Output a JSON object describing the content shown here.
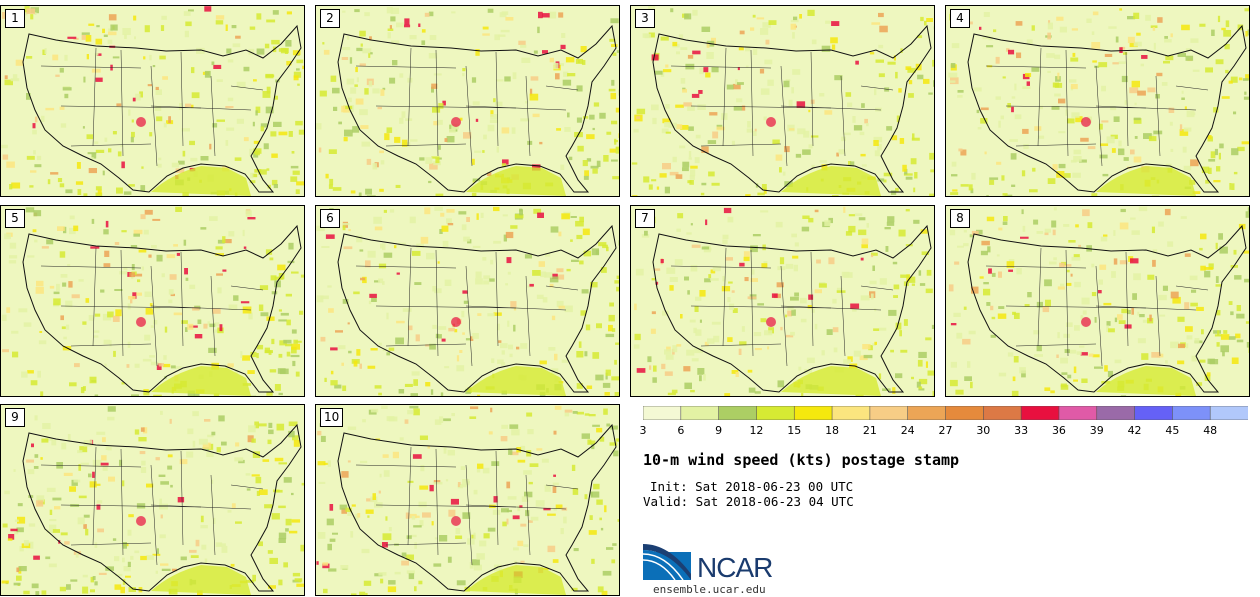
{
  "members": [
    "1",
    "2",
    "3",
    "4",
    "5",
    "6",
    "7",
    "8",
    "9",
    "10"
  ],
  "colorbar": {
    "ticks": [
      "3",
      "6",
      "9",
      "12",
      "15",
      "18",
      "21",
      "24",
      "27",
      "30",
      "33",
      "36",
      "39",
      "42",
      "45",
      "48"
    ],
    "colors": [
      "#f4f9d4",
      "#e3f2a4",
      "#acce64",
      "#d6ea33",
      "#f5e80e",
      "#fbe57f",
      "#f7cd86",
      "#eca556",
      "#e58a3c",
      "#dc7945",
      "#e8103f",
      "#e05aa7",
      "#9a6aa8",
      "#6561f6",
      "#7d91f9",
      "#b1c8fb"
    ]
  },
  "title": "10-m wind speed (kts) postage stamp",
  "init": "Init: Sat 2018-06-23 00 UTC",
  "valid": "Valid: Sat 2018-06-23 04 UTC",
  "logo": {
    "text": "NCAR",
    "site": "ensemble.ucar.edu"
  }
}
